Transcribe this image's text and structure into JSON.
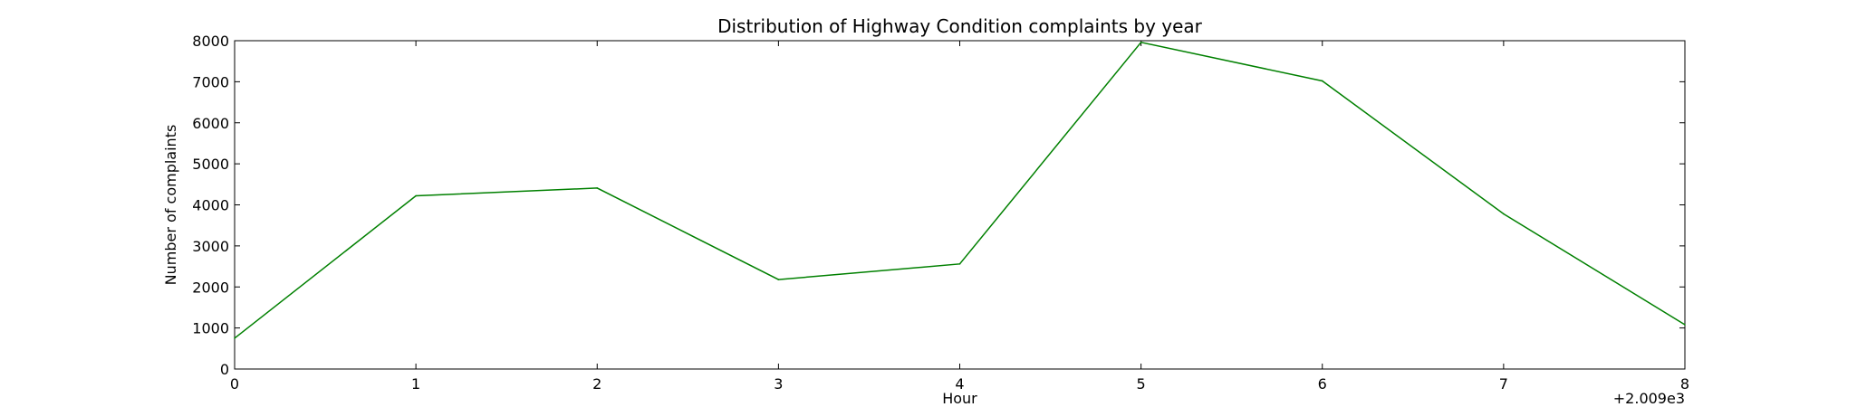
{
  "chart_data": {
    "type": "line",
    "title": "Distribution of  Highway Condition complaints by year",
    "xlabel": "Hour",
    "ylabel": "Number of complaints",
    "x_offset_label": "+2.009e3",
    "x": [
      0,
      1,
      2,
      3,
      4,
      5,
      6,
      7,
      8
    ],
    "x_tick_labels": [
      "0",
      "1",
      "2",
      "3",
      "4",
      "5",
      "6",
      "7",
      "8"
    ],
    "y_tick_labels": [
      "0",
      "1000",
      "2000",
      "3000",
      "4000",
      "5000",
      "6000",
      "7000",
      "8000"
    ],
    "y_ticks": [
      0,
      1000,
      2000,
      3000,
      4000,
      5000,
      6000,
      7000,
      8000
    ],
    "xlim": [
      0,
      8
    ],
    "ylim": [
      0,
      8000
    ],
    "grid": false,
    "series": [
      {
        "color": "#008000",
        "values": [
          750,
          4220,
          4410,
          2180,
          2560,
          7960,
          7020,
          3780,
          1080
        ]
      }
    ]
  }
}
